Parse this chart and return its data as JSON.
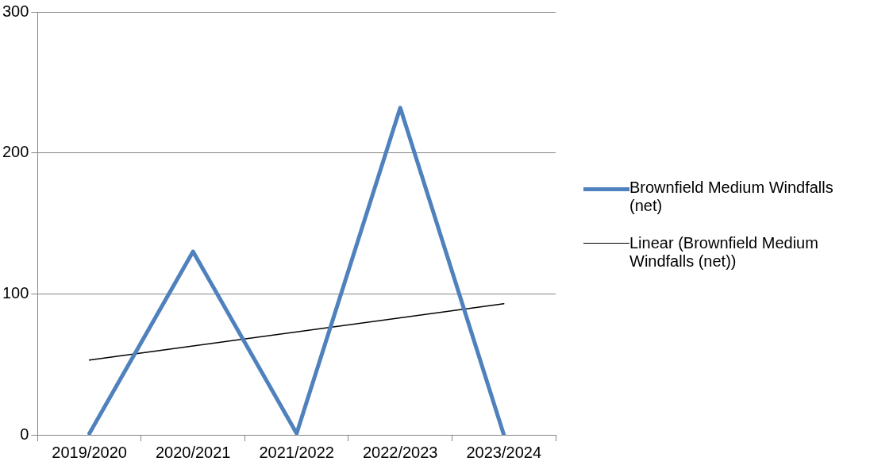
{
  "chart_data": {
    "type": "line",
    "categories": [
      "2019/2020",
      "2020/2021",
      "2021/2022",
      "2022/2023",
      "2023/2024"
    ],
    "series": [
      {
        "name": "Brownfield Medium Windfalls (net)",
        "color": "#4f81bd",
        "values": [
          1,
          130,
          1,
          232,
          0
        ]
      },
      {
        "name": "Linear (Brownfield Medium Windfalls (net))",
        "color": "#000000",
        "type": "line",
        "x": [
          "2019/2020",
          "2023/2024"
        ],
        "values": [
          53,
          93
        ]
      }
    ],
    "ylim": [
      0,
      300
    ],
    "yticks": [
      0,
      100,
      200,
      300
    ],
    "grid": "y",
    "legend": "right",
    "marker": "none",
    "line_style": "solid"
  }
}
